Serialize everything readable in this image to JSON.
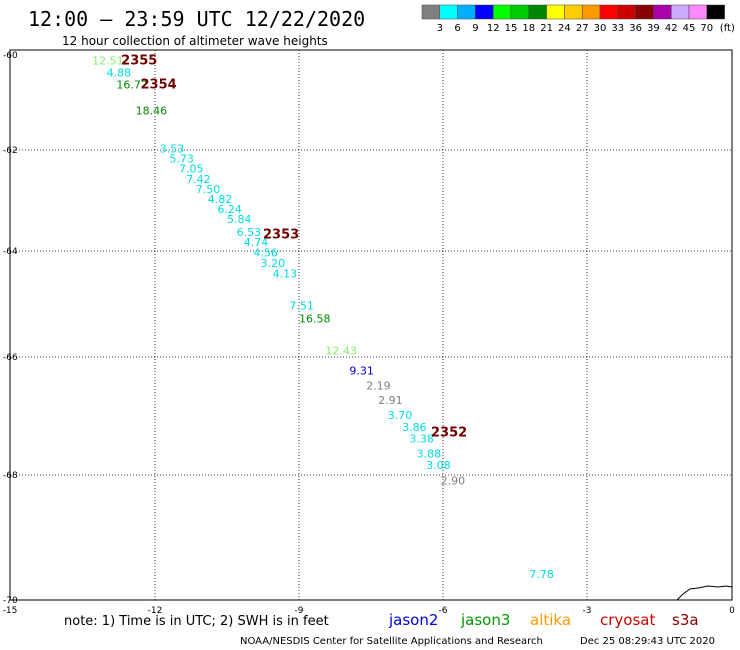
{
  "title": "12:00 – 23:59 UTC 12/22/2020",
  "subtitle": "12 hour collection of altimeter wave heights",
  "legend": {
    "colors": [
      "#808080",
      "#00ffff",
      "#00b0ff",
      "#0000ff",
      "#00ff00",
      "#00cc00",
      "#008800",
      "#ffff00",
      "#ffcc00",
      "#ff9900",
      "#ff0000",
      "#cc0000",
      "#880000",
      "#aa00aa",
      "#ccaaff",
      "#ff88ff",
      "#000000"
    ],
    "labels": [
      "3",
      "6",
      "9",
      "12",
      "15",
      "18",
      "21",
      "24",
      "27",
      "30",
      "33",
      "36",
      "39",
      "42",
      "45",
      "70"
    ],
    "unit": "(ft)"
  },
  "axes": {
    "lon_labels": [
      "-15",
      "-12",
      "-9",
      "-6",
      "-3",
      "0"
    ],
    "lat_labels": [
      "-60",
      "-62",
      "-64",
      "-66",
      "-68",
      "-70"
    ]
  },
  "wave_heights": [
    {
      "text": "12.51",
      "lon": -13.3,
      "lat": -60.2,
      "color": "#88ee66"
    },
    {
      "text": "4.88",
      "lon": -13.0,
      "lat": -60.45,
      "color": "#00dddd"
    },
    {
      "text": "16.72",
      "lon": -12.8,
      "lat": -60.7,
      "color": "#008800"
    },
    {
      "text": "18.46",
      "lon": -12.4,
      "lat": -61.25,
      "color": "#008800"
    },
    {
      "text": "3.53",
      "lon": -11.9,
      "lat": -62.05,
      "color": "#00dddd"
    },
    {
      "text": "5.73",
      "lon": -11.7,
      "lat": -62.25,
      "color": "#00dddd"
    },
    {
      "text": "7.05",
      "lon": -11.5,
      "lat": -62.45,
      "color": "#00dddd"
    },
    {
      "text": "7.42",
      "lon": -11.35,
      "lat": -62.65,
      "color": "#00dddd"
    },
    {
      "text": "7.50",
      "lon": -11.15,
      "lat": -62.85,
      "color": "#00dddd"
    },
    {
      "text": "4.82",
      "lon": -10.9,
      "lat": -63.05,
      "color": "#00dddd"
    },
    {
      "text": "6.24",
      "lon": -10.7,
      "lat": -63.25,
      "color": "#00dddd"
    },
    {
      "text": "5.84",
      "lon": -10.5,
      "lat": -63.45,
      "color": "#00dddd"
    },
    {
      "text": "6.53",
      "lon": -10.3,
      "lat": -63.7,
      "color": "#00dddd"
    },
    {
      "text": "4.74",
      "lon": -10.15,
      "lat": -63.9,
      "color": "#00dddd"
    },
    {
      "text": "4.56",
      "lon": -9.95,
      "lat": -64.1,
      "color": "#00dddd"
    },
    {
      "text": "3.20",
      "lon": -9.8,
      "lat": -64.3,
      "color": "#00dddd"
    },
    {
      "text": "4.13",
      "lon": -9.55,
      "lat": -64.5,
      "color": "#00dddd"
    },
    {
      "text": "7.51",
      "lon": -9.2,
      "lat": -65.1,
      "color": "#00dddd"
    },
    {
      "text": "16.58",
      "lon": -9.0,
      "lat": -65.35,
      "color": "#008800"
    },
    {
      "text": "12.43",
      "lon": -8.45,
      "lat": -65.95,
      "color": "#88ee66"
    },
    {
      "text": "9.31",
      "lon": -7.95,
      "lat": -66.3,
      "color": "#0000cc"
    },
    {
      "text": "2.19",
      "lon": -7.6,
      "lat": -66.55,
      "color": "#808080"
    },
    {
      "text": "2.91",
      "lon": -7.35,
      "lat": -66.8,
      "color": "#808080"
    },
    {
      "text": "3.70",
      "lon": -7.15,
      "lat": -67.05,
      "color": "#00dddd"
    },
    {
      "text": "3.86",
      "lon": -6.85,
      "lat": -67.25,
      "color": "#00dddd"
    },
    {
      "text": "3.38",
      "lon": -6.7,
      "lat": -67.45,
      "color": "#00dddd"
    },
    {
      "text": "3.88",
      "lon": -6.55,
      "lat": -67.7,
      "color": "#00dddd"
    },
    {
      "text": "3.08",
      "lon": -6.35,
      "lat": -67.9,
      "color": "#00dddd"
    },
    {
      "text": "2.90",
      "lon": -6.05,
      "lat": -68.15,
      "color": "#808080"
    },
    {
      "text": "7.78",
      "lon": -4.2,
      "lat": -69.65,
      "color": "#00dddd"
    }
  ],
  "pass_numbers": [
    {
      "text": "2355",
      "lon": -12.7,
      "lat": -60.2
    },
    {
      "text": "2354",
      "lon": -12.3,
      "lat": -60.7
    },
    {
      "text": "2353",
      "lon": -9.75,
      "lat": -63.75
    },
    {
      "text": "2352",
      "lon": -6.25,
      "lat": -67.35
    }
  ],
  "note": "note: 1) Time is in UTC; 2) SWH is in feet",
  "satellites": [
    {
      "name": "jason2",
      "color": "#0000dd"
    },
    {
      "name": "jason3",
      "color": "#009900"
    },
    {
      "name": "altika",
      "color": "#ff9900"
    },
    {
      "name": "cryosat",
      "color": "#cc0000"
    },
    {
      "name": "s3a",
      "color": "#880000"
    }
  ],
  "credit": "NOAA/NESDIS Center for Satellite Applications and Research",
  "timestamp": "Dec 25 08:29:43 UTC 2020"
}
